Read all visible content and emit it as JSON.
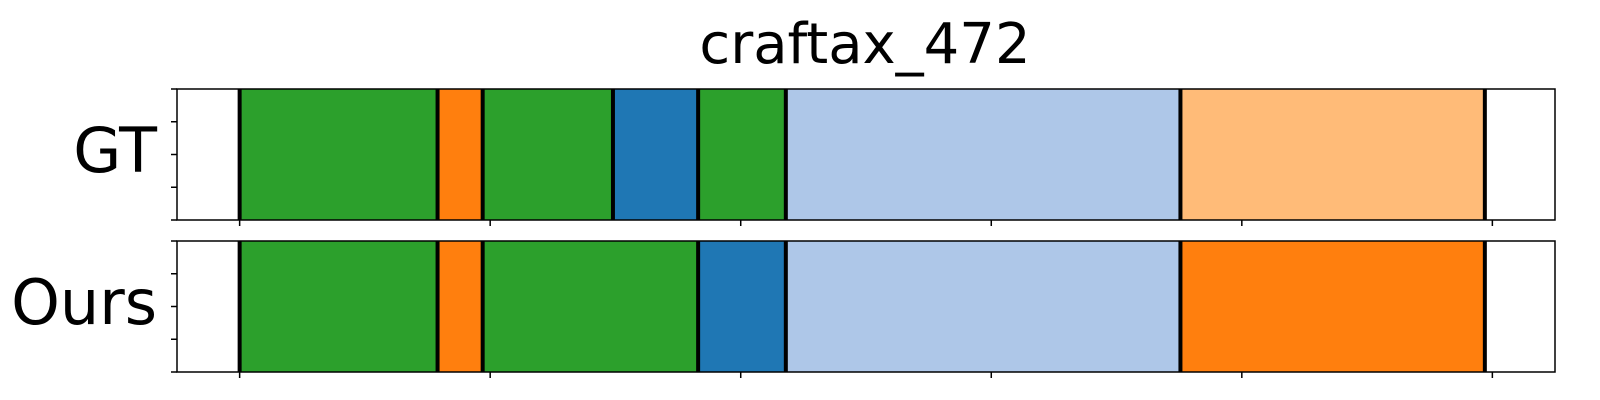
{
  "chart_data": {
    "type": "segmentation-timeline",
    "title": "craftax_472",
    "xlim": [
      0,
      100
    ],
    "x_ticks": [
      5,
      25,
      45,
      65,
      85,
      105
    ],
    "rows": [
      {
        "label": "GT",
        "segments": [
          {
            "start": 0,
            "end": 5,
            "color": "#ffffff"
          },
          {
            "start": 5,
            "end": 20.8,
            "color": "#2ca02c"
          },
          {
            "start": 20.8,
            "end": 24.4,
            "color": "#ff7f0e"
          },
          {
            "start": 24.4,
            "end": 34.8,
            "color": "#2ca02c"
          },
          {
            "start": 34.8,
            "end": 41.6,
            "color": "#1f77b4"
          },
          {
            "start": 41.6,
            "end": 48.6,
            "color": "#2ca02c"
          },
          {
            "start": 48.6,
            "end": 80.1,
            "color": "#aec7e8"
          },
          {
            "start": 80.1,
            "end": 104.4,
            "color": "#ffbb78"
          },
          {
            "start": 104.4,
            "end": 110,
            "color": "#ffffff"
          }
        ],
        "boundaries": [
          5,
          20.8,
          24.4,
          34.8,
          41.6,
          48.6,
          80.1,
          104.4
        ]
      },
      {
        "label": "Ours",
        "segments": [
          {
            "start": 0,
            "end": 5,
            "color": "#ffffff"
          },
          {
            "start": 5,
            "end": 20.8,
            "color": "#2ca02c"
          },
          {
            "start": 20.8,
            "end": 24.4,
            "color": "#ff7f0e"
          },
          {
            "start": 24.4,
            "end": 41.6,
            "color": "#2ca02c"
          },
          {
            "start": 41.6,
            "end": 48.6,
            "color": "#1f77b4"
          },
          {
            "start": 48.6,
            "end": 80.1,
            "color": "#aec7e8"
          },
          {
            "start": 80.1,
            "end": 104.4,
            "color": "#ff7f0e"
          },
          {
            "start": 104.4,
            "end": 110,
            "color": "#ffffff"
          }
        ],
        "boundaries": [
          5,
          20.8,
          24.4,
          41.6,
          48.6,
          80.1,
          104.4
        ]
      }
    ]
  }
}
